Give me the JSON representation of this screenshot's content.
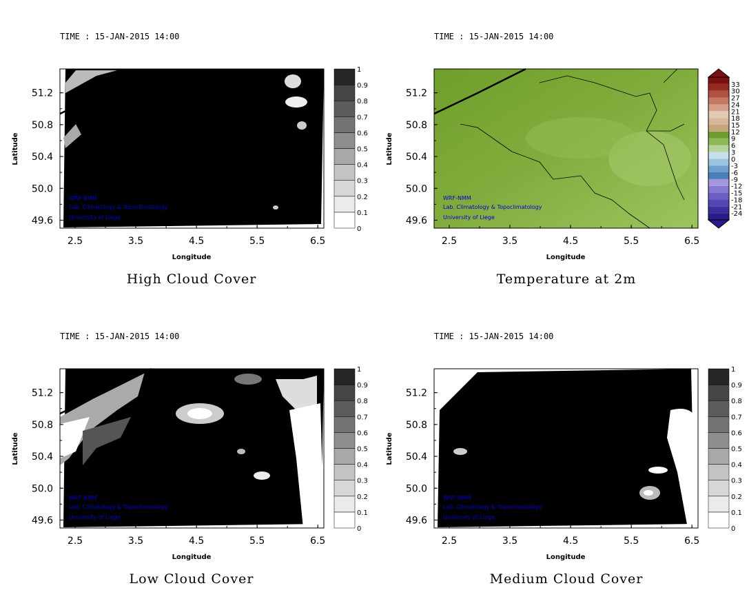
{
  "panels": [
    {
      "id": "high",
      "time": "TIME : 15-JAN-2015 14:00",
      "title": "High Cloud Cover",
      "xlabel": "Longitude",
      "ylabel": "Latitude",
      "credit": [
        "WRF-NMM",
        "Lab. Climatology & Topoclimatology",
        "University of Liege"
      ],
      "colorbar": [
        "0",
        "0.1",
        "0.2",
        "0.3",
        "0.4",
        "0.5",
        "0.6",
        "0.7",
        "0.8",
        "0.9",
        "1"
      ],
      "colorbar_colors": [
        "#ffffff",
        "#ebebeb",
        "#d7d7d7",
        "#c3c3c3",
        "#a8a8a8",
        "#8e8e8e",
        "#737373",
        "#5c5c5c",
        "#454545",
        "#262626",
        "#000000"
      ]
    },
    {
      "id": "temp",
      "time": "TIME : 15-JAN-2015 14:00",
      "title": "Temperature at 2m",
      "xlabel": "Longitude",
      "ylabel": "Latitude",
      "credit": [
        "WRF-NMM",
        "Lab. Climatology & Topoclimatology",
        "University of Liege"
      ],
      "colorbar": [
        "-24",
        "-21",
        "-18",
        "-15",
        "-12",
        "-9",
        "-6",
        "-3",
        "0",
        "3",
        "6",
        "9",
        "12",
        "15",
        "18",
        "21",
        "24",
        "27",
        "30",
        "33"
      ],
      "colorbar_colors": [
        "#2a1a8a",
        "#3c2fa0",
        "#5446b4",
        "#6a5ec4",
        "#8578d2",
        "#a397de",
        "#4a7fb8",
        "#6fa0cc",
        "#9cc3de",
        "#c8e0ea",
        "#b5d39a",
        "#8fb85a",
        "#6e9e2e",
        "#c7a67e",
        "#d6b79a",
        "#e3c9b4",
        "#d8a089",
        "#c47a62",
        "#b0503f",
        "#962a22",
        "#7a1010"
      ]
    },
    {
      "id": "low",
      "time": "TIME : 15-JAN-2015 14:00",
      "title": "Low Cloud Cover",
      "xlabel": "Longitude",
      "ylabel": "Latitude",
      "credit": [
        "WRF-NMM",
        "Lab. Climatology & Topoclimatology",
        "University of Liege"
      ],
      "colorbar": [
        "0",
        "0.1",
        "0.2",
        "0.3",
        "0.4",
        "0.5",
        "0.6",
        "0.7",
        "0.8",
        "0.9",
        "1"
      ],
      "colorbar_colors": [
        "#ffffff",
        "#ebebeb",
        "#d7d7d7",
        "#c3c3c3",
        "#a8a8a8",
        "#8e8e8e",
        "#737373",
        "#5c5c5c",
        "#454545",
        "#262626",
        "#000000"
      ]
    },
    {
      "id": "medium",
      "time": "TIME : 15-JAN-2015 14:00",
      "title": "Medium Cloud Cover",
      "xlabel": "Longitude",
      "ylabel": "Latitude",
      "credit": [
        "WRF-NMM",
        "Lab. Climatology & Topoclimatology",
        "University of Liege"
      ],
      "colorbar": [
        "0",
        "0.1",
        "0.2",
        "0.3",
        "0.4",
        "0.5",
        "0.6",
        "0.7",
        "0.8",
        "0.9",
        "1"
      ],
      "colorbar_colors": [
        "#ffffff",
        "#ebebeb",
        "#d7d7d7",
        "#c3c3c3",
        "#a8a8a8",
        "#8e8e8e",
        "#737373",
        "#5c5c5c",
        "#454545",
        "#262626",
        "#000000"
      ]
    }
  ],
  "axes": {
    "x_ticks": [
      "2.5",
      "3.5",
      "4.5",
      "5.5",
      "6.5"
    ],
    "y_ticks": [
      "51.2",
      "50.8",
      "50.4",
      "50.0",
      "49.6"
    ],
    "x_range": [
      2.25,
      6.6
    ],
    "y_range": [
      49.5,
      51.5
    ]
  },
  "colors": {
    "credit": "#0000cc",
    "border": "#000000",
    "temp_field": "#7aa63a"
  }
}
